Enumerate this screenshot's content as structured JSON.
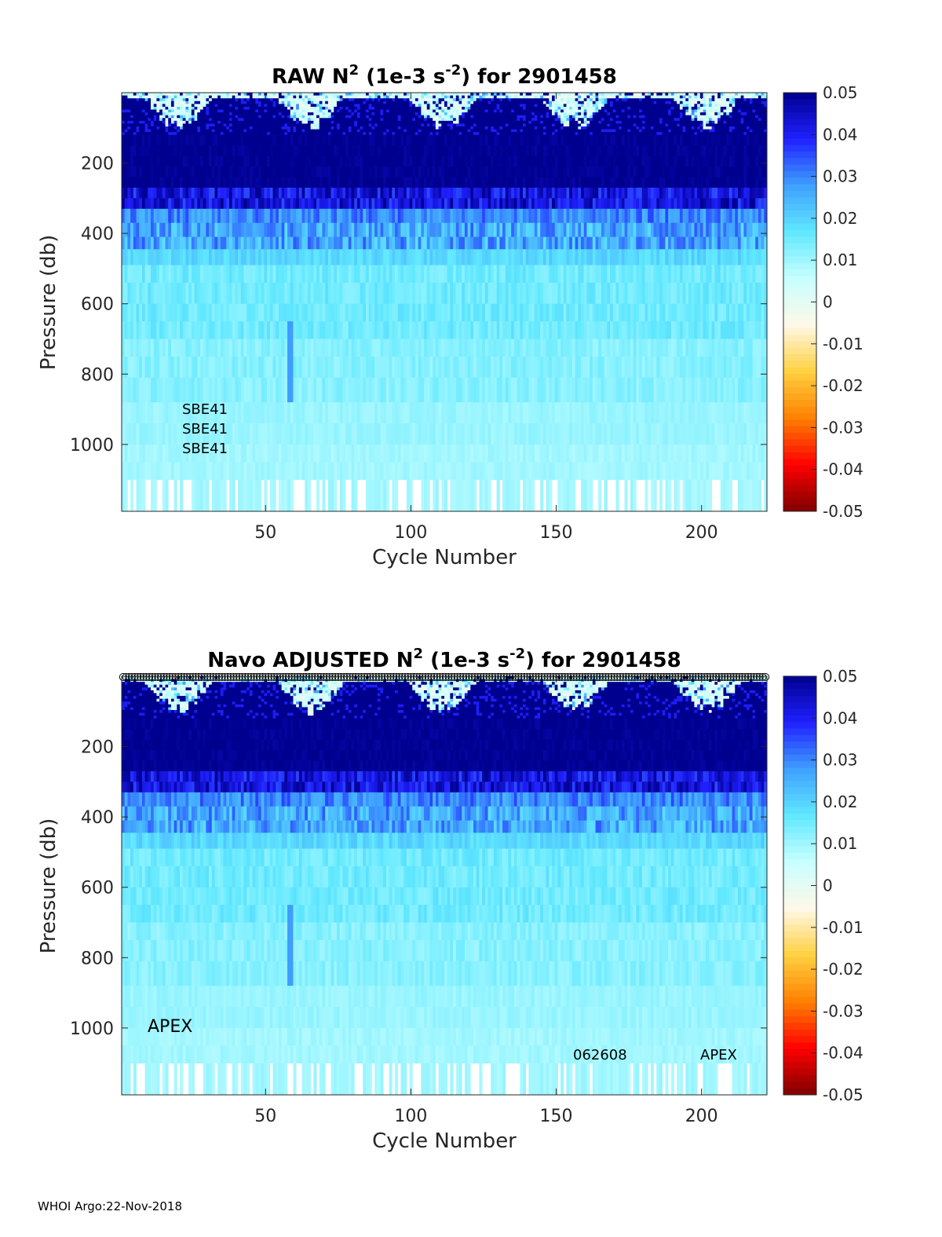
{
  "footer": "WHOI Argo:22-Nov-2018",
  "colormap": {
    "name": "jet-with-white-center",
    "stops": [
      "#7f0000",
      "#ff0000",
      "#ff8000",
      "#ffd040",
      "#fff8e8",
      "#c8ffff",
      "#60e8ff",
      "#3fa0ff",
      "#2020ff",
      "#00008f"
    ]
  },
  "chart_data": [
    {
      "type": "heatmap",
      "title_pre": "RAW N",
      "title_sup1": "2",
      "title_mid": " (1e-3 s",
      "title_sup2": "-2",
      "title_post": ") for 2901458",
      "xlabel": "Cycle Number",
      "ylabel": "Pressure (db)",
      "xlim": [
        1,
        222
      ],
      "ylim": [
        1190,
        0
      ],
      "xticks": [
        50,
        100,
        150,
        200
      ],
      "yticks": [
        200,
        400,
        600,
        800,
        1000
      ],
      "colorbar": {
        "clim": [
          -0.05,
          0.05
        ],
        "ticks": [
          "0.05",
          "0.04",
          "0.03",
          "0.02",
          "0.01",
          "0",
          "-0.01",
          "-0.02",
          "-0.03",
          "-0.04",
          "-0.05"
        ]
      },
      "layers": [
        {
          "p_range": [
            0,
            120
          ],
          "value": "mixed, near 0 with patches of 0.05"
        },
        {
          "p_range": [
            120,
            330
          ],
          "value": 0.05
        },
        {
          "p_range": [
            330,
            440
          ],
          "value": 0.03
        },
        {
          "p_range": [
            440,
            700
          ],
          "value": 0.014
        },
        {
          "p_range": [
            700,
            1100
          ],
          "value": 0.01
        }
      ],
      "annotations": [
        "SBE41",
        "SBE41",
        "SBE41"
      ],
      "show_markers": false
    },
    {
      "type": "heatmap",
      "title_pre": "Navo  ADJUSTED N",
      "title_sup1": "2",
      "title_mid": " (1e-3 s",
      "title_sup2": "-2",
      "title_post": ") for 2901458",
      "xlabel": "Cycle Number",
      "ylabel": "Pressure (db)",
      "xlim": [
        1,
        222
      ],
      "ylim": [
        1190,
        0
      ],
      "xticks": [
        50,
        100,
        150,
        200
      ],
      "yticks": [
        200,
        400,
        600,
        800,
        1000
      ],
      "colorbar": {
        "clim": [
          -0.05,
          0.05
        ],
        "ticks": [
          "0.05",
          "0.04",
          "0.03",
          "0.02",
          "0.01",
          "0",
          "-0.01",
          "-0.02",
          "-0.03",
          "-0.04",
          "-0.05"
        ]
      },
      "layers": [
        {
          "p_range": [
            0,
            120
          ],
          "value": "mixed, near 0 with patches of 0.05"
        },
        {
          "p_range": [
            120,
            330
          ],
          "value": 0.05
        },
        {
          "p_range": [
            330,
            440
          ],
          "value": 0.03
        },
        {
          "p_range": [
            440,
            700
          ],
          "value": 0.014
        },
        {
          "p_range": [
            700,
            1100
          ],
          "value": 0.01
        }
      ],
      "annotations": [
        "APEX",
        "062608",
        "APEX"
      ],
      "show_markers": true
    }
  ]
}
